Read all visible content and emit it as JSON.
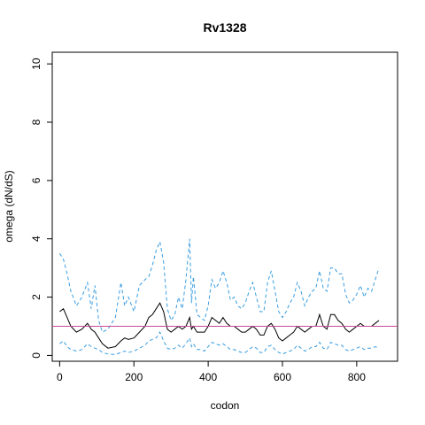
{
  "chart_data": {
    "type": "line",
    "title": "Rv1328",
    "xlabel": "codon",
    "ylabel": "omega (dN/dS)",
    "xlim": [
      -20,
      910
    ],
    "ylim": [
      -0.2,
      10.4
    ],
    "xticks": [
      0,
      200,
      400,
      600,
      800
    ],
    "yticks": [
      0,
      2,
      4,
      6,
      8,
      10
    ],
    "reference_line": {
      "y": 1,
      "color": "#c9479b"
    },
    "colors": {
      "estimate": "#000000",
      "interval": "#3a9ee0"
    },
    "series": [
      {
        "role": "upper",
        "style": "dashed",
        "x": [
          0,
          10,
          20,
          30,
          45,
          60,
          75,
          85,
          95,
          105,
          115,
          130,
          150,
          165,
          175,
          185,
          200,
          215,
          230,
          240,
          250,
          260,
          270,
          280,
          290,
          300,
          310,
          320,
          330,
          340,
          350,
          355,
          360,
          370,
          380,
          390,
          400,
          410,
          420,
          430,
          440,
          450,
          460,
          470,
          480,
          490,
          500,
          510,
          520,
          530,
          540,
          550,
          560,
          570,
          580,
          590,
          600,
          610,
          620,
          630,
          640,
          650,
          660,
          670,
          680,
          690,
          700,
          710,
          720,
          730,
          740,
          750,
          760,
          770,
          780,
          790,
          800,
          810,
          820,
          830,
          840,
          850,
          860
        ],
        "y": [
          3.5,
          3.3,
          2.8,
          2.2,
          1.7,
          2.0,
          2.5,
          1.6,
          2.4,
          1.2,
          0.8,
          0.9,
          1.3,
          2.5,
          1.7,
          2.0,
          1.5,
          2.4,
          2.6,
          2.7,
          3.1,
          3.6,
          3.9,
          3.2,
          1.6,
          1.2,
          1.4,
          2.0,
          1.6,
          2.6,
          4.0,
          1.8,
          2.7,
          1.4,
          1.3,
          1.2,
          1.7,
          2.6,
          2.3,
          2.5,
          2.9,
          2.5,
          1.9,
          2.0,
          1.7,
          1.6,
          1.8,
          2.2,
          2.5,
          2.0,
          1.5,
          1.5,
          2.5,
          2.9,
          2.2,
          1.5,
          1.3,
          1.5,
          1.8,
          2.0,
          2.5,
          2.2,
          1.7,
          2.0,
          2.2,
          2.3,
          2.9,
          2.3,
          2.2,
          3.0,
          3.0,
          2.8,
          2.8,
          2.1,
          1.8,
          1.9,
          2.1,
          2.4,
          2.0,
          2.3,
          2.2,
          2.6,
          3.0
        ]
      },
      {
        "role": "estimate",
        "style": "solid",
        "x": [
          0,
          10,
          20,
          30,
          45,
          60,
          75,
          85,
          95,
          105,
          115,
          130,
          150,
          165,
          175,
          185,
          200,
          215,
          230,
          240,
          250,
          260,
          270,
          280,
          290,
          300,
          310,
          320,
          330,
          340,
          350,
          355,
          360,
          370,
          380,
          390,
          400,
          410,
          420,
          430,
          440,
          450,
          460,
          470,
          480,
          490,
          500,
          510,
          520,
          530,
          540,
          550,
          560,
          570,
          580,
          590,
          600,
          610,
          620,
          630,
          640,
          650,
          660,
          670,
          680,
          690,
          700,
          710,
          720,
          730,
          740,
          750,
          760,
          770,
          780,
          790,
          800,
          810,
          820,
          830,
          840,
          850,
          860
        ],
        "y": [
          1.5,
          1.6,
          1.3,
          1.0,
          0.8,
          0.9,
          1.1,
          0.9,
          0.8,
          0.6,
          0.4,
          0.25,
          0.3,
          0.5,
          0.6,
          0.55,
          0.6,
          0.8,
          1.0,
          1.3,
          1.4,
          1.6,
          1.8,
          1.5,
          0.9,
          0.8,
          0.9,
          1.0,
          0.9,
          1.0,
          1.3,
          0.9,
          1.0,
          0.8,
          0.8,
          0.8,
          1.0,
          1.3,
          1.2,
          1.1,
          1.3,
          1.1,
          1.0,
          1.0,
          0.9,
          0.8,
          0.8,
          0.9,
          1.0,
          0.9,
          0.7,
          0.7,
          1.0,
          1.1,
          0.9,
          0.6,
          0.5,
          0.6,
          0.7,
          0.8,
          1.0,
          0.9,
          0.8,
          0.9,
          1.0,
          1.0,
          1.4,
          1.0,
          0.9,
          1.4,
          1.4,
          1.2,
          1.1,
          0.9,
          0.8,
          0.9,
          1.0,
          1.1,
          1.0,
          1.0,
          1.0,
          1.1,
          1.2
        ]
      },
      {
        "role": "lower",
        "style": "dashed",
        "x": [
          0,
          10,
          20,
          30,
          45,
          60,
          75,
          85,
          95,
          105,
          115,
          130,
          150,
          165,
          175,
          185,
          200,
          215,
          230,
          240,
          250,
          260,
          270,
          280,
          290,
          300,
          310,
          320,
          330,
          340,
          350,
          355,
          360,
          370,
          380,
          390,
          400,
          410,
          420,
          430,
          440,
          450,
          460,
          470,
          480,
          490,
          500,
          510,
          520,
          530,
          540,
          550,
          560,
          570,
          580,
          590,
          600,
          610,
          620,
          630,
          640,
          650,
          660,
          670,
          680,
          690,
          700,
          710,
          720,
          730,
          740,
          750,
          760,
          770,
          780,
          790,
          800,
          810,
          820,
          830,
          840,
          850,
          860
        ],
        "y": [
          0.4,
          0.5,
          0.3,
          0.2,
          0.15,
          0.2,
          0.4,
          0.3,
          0.25,
          0.2,
          0.1,
          0.05,
          0.03,
          0.1,
          0.15,
          0.1,
          0.15,
          0.25,
          0.35,
          0.5,
          0.55,
          0.6,
          0.8,
          0.5,
          0.25,
          0.2,
          0.25,
          0.35,
          0.25,
          0.4,
          0.6,
          0.3,
          0.4,
          0.2,
          0.2,
          0.15,
          0.3,
          0.45,
          0.4,
          0.35,
          0.4,
          0.3,
          0.2,
          0.2,
          0.15,
          0.1,
          0.1,
          0.2,
          0.3,
          0.25,
          0.1,
          0.1,
          0.3,
          0.35,
          0.2,
          0.1,
          0.05,
          0.1,
          0.15,
          0.2,
          0.35,
          0.25,
          0.15,
          0.2,
          0.3,
          0.3,
          0.45,
          0.25,
          0.2,
          0.45,
          0.4,
          0.35,
          0.35,
          0.2,
          0.15,
          0.2,
          0.25,
          0.3,
          0.2,
          0.25,
          0.25,
          0.3,
          0.25
        ]
      }
    ]
  }
}
